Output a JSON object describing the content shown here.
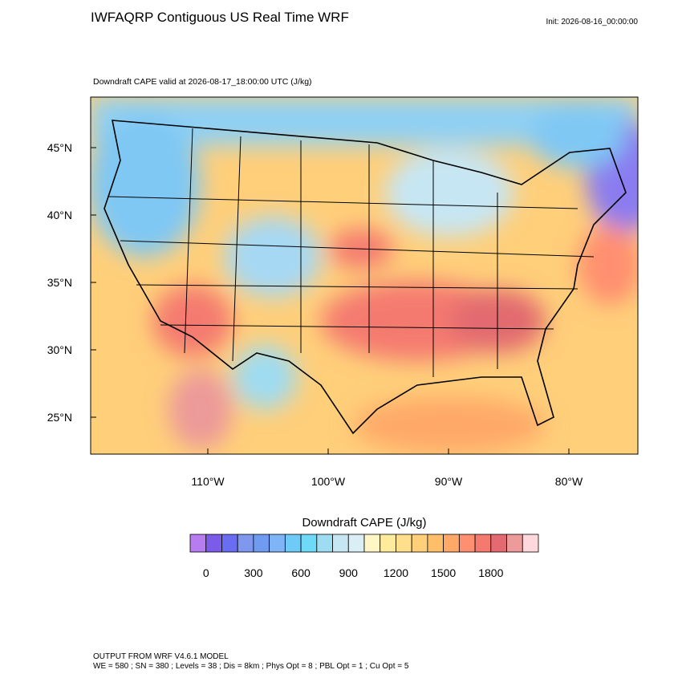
{
  "header": {
    "title": "IWFAQRP Contiguous US Real Time WRF",
    "init": "Init: 2026-08-16_00:00:00",
    "subtitle": "Downdraft CAPE valid at 2026-08-17_18:00:00 UTC   (J/kg)"
  },
  "map": {
    "lat_labels": [
      "45°N",
      "40°N",
      "35°N",
      "30°N",
      "25°N"
    ],
    "lon_labels": [
      "110°W",
      "100°W",
      "90°W",
      "80°W"
    ]
  },
  "colorbar": {
    "title": "Downdraft CAPE  (J/kg)",
    "range": [
      -100,
      2100
    ],
    "ticks": [
      0,
      300,
      600,
      900,
      1200,
      1500,
      1800
    ],
    "colors": [
      "#b77cf0",
      "#7a5ce8",
      "#6a6cf2",
      "#7f98ee",
      "#6f9cf0",
      "#7fb4f6",
      "#6ecaf6",
      "#6fdaf8",
      "#9edcf2",
      "#c6e6f4",
      "#daeef6",
      "#fff6c6",
      "#ffeb9c",
      "#ffde8c",
      "#ffcf7a",
      "#ffbe6a",
      "#ffa868",
      "#ff8f70",
      "#f47a70",
      "#e26a70",
      "#ec9a9a",
      "#ffd8dc"
    ]
  },
  "footer": {
    "line1": "OUTPUT FROM WRF V4.6.1 MODEL",
    "line2": "WE = 580 ; SN = 380 ; Levels = 38 ; Dis = 8km ; Phys Opt = 8 ; PBL Opt = 1 ; Cu Opt = 5"
  }
}
